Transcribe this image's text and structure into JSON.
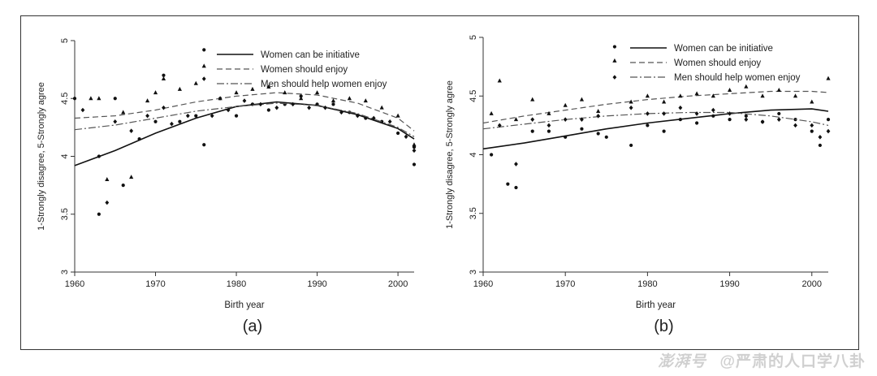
{
  "chart_data": [
    {
      "type": "scatter",
      "panel_label": "(a)",
      "xlabel": "Birth year",
      "ylabel": "1-Strongly disagree, 5-Strongly agree",
      "xlim": [
        1960,
        2002
      ],
      "ylim": [
        3,
        5
      ],
      "xticks": [
        1960,
        1970,
        1980,
        1990,
        2000
      ],
      "yticks": [
        3,
        3.5,
        4,
        4.5,
        5
      ],
      "legend_position": "top-right",
      "series": [
        {
          "name": "Women can be initiative",
          "marker": "circle",
          "line": "solid",
          "points": [
            [
              1960,
              4.5
            ],
            [
              1963,
              4.0
            ],
            [
              1963,
              3.5
            ],
            [
              1965,
              4.5
            ],
            [
              1966,
              3.75
            ],
            [
              1968,
              4.15
            ],
            [
              1970,
              4.3
            ],
            [
              1971,
              4.7
            ],
            [
              1973,
              4.3
            ],
            [
              1975,
              4.35
            ],
            [
              1976,
              4.1
            ],
            [
              1976,
              4.92
            ],
            [
              1978,
              4.5
            ],
            [
              1980,
              4.35
            ],
            [
              1982,
              4.45
            ],
            [
              1984,
              4.4
            ],
            [
              1986,
              4.45
            ],
            [
              1988,
              4.52
            ],
            [
              1990,
              4.45
            ],
            [
              1992,
              4.45
            ],
            [
              1994,
              4.38
            ],
            [
              1996,
              4.33
            ],
            [
              1998,
              4.3
            ],
            [
              2000,
              4.2
            ],
            [
              2002,
              4.08
            ],
            [
              2002,
              3.93
            ]
          ],
          "fit": [
            [
              1960,
              3.92
            ],
            [
              1965,
              4.05
            ],
            [
              1970,
              4.2
            ],
            [
              1975,
              4.33
            ],
            [
              1980,
              4.43
            ],
            [
              1985,
              4.47
            ],
            [
              1990,
              4.44
            ],
            [
              1995,
              4.36
            ],
            [
              2000,
              4.24
            ],
            [
              2002,
              4.15
            ]
          ]
        },
        {
          "name": "Women should enjoy",
          "marker": "triangle",
          "line": "dashed",
          "points": [
            [
              1962,
              4.5
            ],
            [
              1963,
              4.5
            ],
            [
              1964,
              3.8
            ],
            [
              1966,
              4.38
            ],
            [
              1967,
              3.82
            ],
            [
              1969,
              4.48
            ],
            [
              1970,
              4.55
            ],
            [
              1971,
              4.67
            ],
            [
              1973,
              4.58
            ],
            [
              1975,
              4.63
            ],
            [
              1976,
              4.78
            ],
            [
              1978,
              4.5
            ],
            [
              1980,
              4.55
            ],
            [
              1982,
              4.58
            ],
            [
              1984,
              4.6
            ],
            [
              1986,
              4.55
            ],
            [
              1988,
              4.5
            ],
            [
              1990,
              4.55
            ],
            [
              1992,
              4.48
            ],
            [
              1994,
              4.5
            ],
            [
              1996,
              4.48
            ],
            [
              1998,
              4.42
            ],
            [
              2000,
              4.35
            ],
            [
              2002,
              4.1
            ]
          ],
          "fit": [
            [
              1960,
              4.33
            ],
            [
              1965,
              4.35
            ],
            [
              1970,
              4.4
            ],
            [
              1975,
              4.47
            ],
            [
              1980,
              4.52
            ],
            [
              1985,
              4.55
            ],
            [
              1990,
              4.53
            ],
            [
              1995,
              4.46
            ],
            [
              2000,
              4.33
            ],
            [
              2002,
              4.22
            ]
          ]
        },
        {
          "name": "Men should help women enjoy",
          "marker": "diamond",
          "line": "dashdot",
          "points": [
            [
              1961,
              4.4
            ],
            [
              1964,
              3.6
            ],
            [
              1965,
              4.3
            ],
            [
              1967,
              4.22
            ],
            [
              1969,
              4.35
            ],
            [
              1971,
              4.42
            ],
            [
              1972,
              4.28
            ],
            [
              1974,
              4.35
            ],
            [
              1976,
              4.67
            ],
            [
              1977,
              4.35
            ],
            [
              1979,
              4.4
            ],
            [
              1981,
              4.48
            ],
            [
              1983,
              4.45
            ],
            [
              1985,
              4.42
            ],
            [
              1987,
              4.45
            ],
            [
              1989,
              4.42
            ],
            [
              1991,
              4.42
            ],
            [
              1993,
              4.38
            ],
            [
              1995,
              4.35
            ],
            [
              1997,
              4.33
            ],
            [
              1999,
              4.3
            ],
            [
              2001,
              4.17
            ],
            [
              2002,
              4.05
            ]
          ],
          "fit": [
            [
              1960,
              4.23
            ],
            [
              1965,
              4.27
            ],
            [
              1970,
              4.33
            ],
            [
              1975,
              4.39
            ],
            [
              1980,
              4.43
            ],
            [
              1985,
              4.46
            ],
            [
              1990,
              4.44
            ],
            [
              1995,
              4.37
            ],
            [
              2000,
              4.25
            ],
            [
              2002,
              4.17
            ]
          ]
        }
      ]
    },
    {
      "type": "scatter",
      "panel_label": "(b)",
      "xlabel": "Birth year",
      "ylabel": "1-Strongly disagree, 5-Strongly agree",
      "xlim": [
        1960,
        2002
      ],
      "ylim": [
        3,
        5
      ],
      "xticks": [
        1960,
        1970,
        1980,
        1990,
        2000
      ],
      "yticks": [
        3,
        3.5,
        4,
        4.5,
        5
      ],
      "legend_position": "top-right",
      "series": [
        {
          "name": "Women can be initiative",
          "marker": "circle",
          "line": "solid",
          "points": [
            [
              1961,
              4.0
            ],
            [
              1963,
              3.75
            ],
            [
              1964,
              3.72
            ],
            [
              1966,
              4.2
            ],
            [
              1968,
              4.2
            ],
            [
              1970,
              4.15
            ],
            [
              1972,
              4.22
            ],
            [
              1974,
              4.18
            ],
            [
              1975,
              4.15
            ],
            [
              1976,
              4.92
            ],
            [
              1978,
              4.08
            ],
            [
              1980,
              4.25
            ],
            [
              1982,
              4.2
            ],
            [
              1984,
              4.3
            ],
            [
              1986,
              4.27
            ],
            [
              1988,
              4.33
            ],
            [
              1990,
              4.3
            ],
            [
              1992,
              4.33
            ],
            [
              1994,
              4.28
            ],
            [
              1996,
              4.35
            ],
            [
              1998,
              4.3
            ],
            [
              2000,
              4.2
            ],
            [
              2001,
              4.08
            ],
            [
              2002,
              4.3
            ]
          ],
          "fit": [
            [
              1960,
              4.05
            ],
            [
              1965,
              4.1
            ],
            [
              1970,
              4.16
            ],
            [
              1975,
              4.22
            ],
            [
              1980,
              4.27
            ],
            [
              1985,
              4.31
            ],
            [
              1990,
              4.35
            ],
            [
              1995,
              4.38
            ],
            [
              2000,
              4.39
            ],
            [
              2002,
              4.37
            ]
          ]
        },
        {
          "name": "Women should enjoy",
          "marker": "triangle",
          "line": "dashed",
          "points": [
            [
              1961,
              4.35
            ],
            [
              1962,
              4.63
            ],
            [
              1964,
              4.3
            ],
            [
              1966,
              4.47
            ],
            [
              1968,
              4.35
            ],
            [
              1970,
              4.42
            ],
            [
              1972,
              4.47
            ],
            [
              1974,
              4.37
            ],
            [
              1976,
              4.8
            ],
            [
              1978,
              4.45
            ],
            [
              1980,
              4.5
            ],
            [
              1982,
              4.45
            ],
            [
              1984,
              4.5
            ],
            [
              1986,
              4.52
            ],
            [
              1988,
              4.5
            ],
            [
              1990,
              4.55
            ],
            [
              1992,
              4.58
            ],
            [
              1994,
              4.5
            ],
            [
              1996,
              4.55
            ],
            [
              1998,
              4.5
            ],
            [
              2000,
              4.45
            ],
            [
              2002,
              4.65
            ]
          ],
          "fit": [
            [
              1960,
              4.27
            ],
            [
              1965,
              4.33
            ],
            [
              1970,
              4.38
            ],
            [
              1975,
              4.43
            ],
            [
              1980,
              4.47
            ],
            [
              1985,
              4.5
            ],
            [
              1990,
              4.52
            ],
            [
              1995,
              4.54
            ],
            [
              2000,
              4.54
            ],
            [
              2002,
              4.53
            ]
          ]
        },
        {
          "name": "Men should help women enjoy",
          "marker": "diamond",
          "line": "dashdot",
          "points": [
            [
              1962,
              4.25
            ],
            [
              1964,
              3.92
            ],
            [
              1966,
              4.3
            ],
            [
              1968,
              4.25
            ],
            [
              1970,
              4.3
            ],
            [
              1972,
              4.3
            ],
            [
              1974,
              4.33
            ],
            [
              1976,
              4.66
            ],
            [
              1978,
              4.4
            ],
            [
              1980,
              4.35
            ],
            [
              1982,
              4.35
            ],
            [
              1984,
              4.4
            ],
            [
              1986,
              4.35
            ],
            [
              1988,
              4.38
            ],
            [
              1990,
              4.35
            ],
            [
              1992,
              4.3
            ],
            [
              1994,
              4.28
            ],
            [
              1996,
              4.3
            ],
            [
              1998,
              4.25
            ],
            [
              2000,
              4.25
            ],
            [
              2001,
              4.15
            ],
            [
              2002,
              4.2
            ]
          ],
          "fit": [
            [
              1960,
              4.22
            ],
            [
              1965,
              4.26
            ],
            [
              1970,
              4.3
            ],
            [
              1975,
              4.33
            ],
            [
              1980,
              4.35
            ],
            [
              1985,
              4.36
            ],
            [
              1990,
              4.36
            ],
            [
              1995,
              4.33
            ],
            [
              2000,
              4.28
            ],
            [
              2002,
              4.25
            ]
          ]
        }
      ]
    }
  ],
  "watermark": {
    "brand": "澎湃号",
    "author": "@严肃的人口学八卦"
  }
}
